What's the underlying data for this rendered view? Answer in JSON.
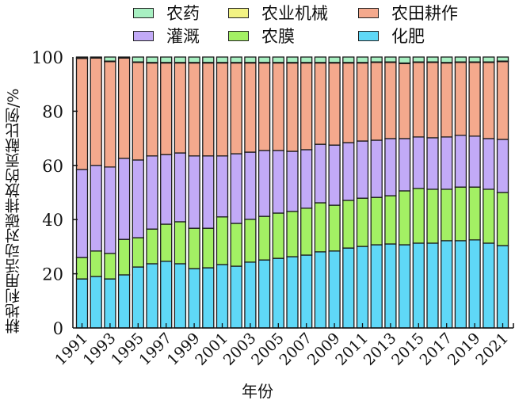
{
  "chart_data": {
    "type": "bar",
    "stacked": true,
    "title": "",
    "xlabel": "年份",
    "ylabel": "耕地利用活动对碳排放的贡献比例/%",
    "ylim": [
      0,
      100
    ],
    "yticks": [
      0,
      20,
      40,
      60,
      80,
      100
    ],
    "legend_position": "top",
    "categories": [
      "1991",
      "1992",
      "1993",
      "1994",
      "1995",
      "1996",
      "1997",
      "1998",
      "1999",
      "2000",
      "2001",
      "2002",
      "2003",
      "2004",
      "2005",
      "2006",
      "2007",
      "2008",
      "2009",
      "2010",
      "2011",
      "2012",
      "2013",
      "2014",
      "2015",
      "2016",
      "2017",
      "2018",
      "2019",
      "2020",
      "2021"
    ],
    "xtick_labels": [
      "1991",
      "1993",
      "1995",
      "1997",
      "1999",
      "2001",
      "2003",
      "2005",
      "2007",
      "2009",
      "2011",
      "2013",
      "2015",
      "2017",
      "2019",
      "2021"
    ],
    "series": [
      {
        "name": "化肥",
        "color": "#5fd8f7",
        "values": [
          18.1,
          19.0,
          18.1,
          19.6,
          22.5,
          23.7,
          24.6,
          23.7,
          21.9,
          22.2,
          23.4,
          22.8,
          24.3,
          25.1,
          25.7,
          26.3,
          26.9,
          28.1,
          28.4,
          29.5,
          30.1,
          30.7,
          31.0,
          30.7,
          31.3,
          31.3,
          32.2,
          32.2,
          32.5,
          31.3,
          30.4
        ]
      },
      {
        "name": "农膜",
        "color": "#a3f064",
        "values": [
          7.9,
          9.4,
          9.4,
          13.1,
          10.8,
          12.8,
          13.7,
          15.5,
          14.9,
          14.6,
          17.6,
          15.8,
          15.8,
          16.1,
          16.7,
          16.7,
          17.3,
          18.1,
          16.9,
          17.6,
          17.8,
          17.5,
          17.8,
          19.9,
          20.2,
          19.9,
          19.0,
          19.8,
          19.5,
          19.9,
          19.6
        ]
      },
      {
        "name": "灌溉",
        "color": "#c2aaf7",
        "values": [
          32.5,
          31.6,
          31.9,
          29.9,
          28.7,
          27.0,
          25.7,
          25.4,
          26.7,
          26.7,
          22.5,
          25.7,
          24.8,
          24.3,
          23.1,
          22.2,
          21.6,
          21.6,
          22.2,
          21.3,
          21.1,
          21.1,
          21.1,
          19.3,
          19.0,
          19.0,
          19.3,
          19.1,
          18.8,
          18.7,
          19.6
        ]
      },
      {
        "name": "农田耕作",
        "color": "#f4a98d",
        "values": [
          41.0,
          39.6,
          38.9,
          37.0,
          36.0,
          34.3,
          33.8,
          33.2,
          34.3,
          34.3,
          34.3,
          33.5,
          32.9,
          32.3,
          32.3,
          32.6,
          32.0,
          30.0,
          30.3,
          29.4,
          28.8,
          28.7,
          28.1,
          27.7,
          27.5,
          27.8,
          27.3,
          26.9,
          27.2,
          28.1,
          28.7
        ]
      },
      {
        "name": "农业机械",
        "color": "#f2f283",
        "values": [
          0.2,
          0.2,
          0.2,
          0.2,
          0.2,
          0.2,
          0.2,
          0.2,
          0.2,
          0.2,
          0.2,
          0.2,
          0.2,
          0.2,
          0.2,
          0.2,
          0.2,
          0.2,
          0.2,
          0.2,
          0.2,
          0.2,
          0.2,
          0.2,
          0.2,
          0.2,
          0.2,
          0.2,
          0.2,
          0.2,
          0.2
        ]
      },
      {
        "name": "农药",
        "color": "#a8f0c2",
        "values": [
          0.3,
          0.2,
          1.5,
          0.2,
          1.8,
          2.0,
          2.0,
          2.0,
          2.0,
          2.0,
          2.0,
          2.0,
          2.0,
          2.0,
          2.0,
          2.0,
          2.0,
          2.0,
          2.0,
          2.0,
          2.0,
          1.8,
          1.8,
          2.2,
          1.8,
          1.8,
          2.0,
          1.8,
          1.8,
          1.8,
          1.5
        ]
      }
    ],
    "legend_order": [
      "农药",
      "农业机械",
      "农田耕作",
      "灌溉",
      "农膜",
      "化肥"
    ]
  }
}
